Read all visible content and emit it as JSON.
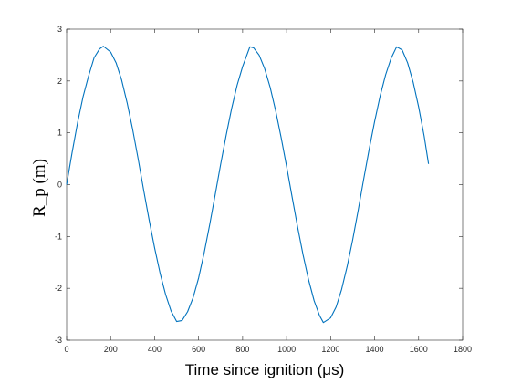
{
  "chart_data": {
    "type": "line",
    "title": "",
    "xlabel": "Time since ignition (μs)",
    "ylabel": "R_p (m)",
    "xlim": [
      0,
      1800
    ],
    "ylim": [
      -3,
      3
    ],
    "xticks": [
      "0",
      "200",
      "400",
      "600",
      "800",
      "1000",
      "1200",
      "1400",
      "1600",
      "1800"
    ],
    "yticks": [
      "-3",
      "-2",
      "-1",
      "0",
      "1",
      "2",
      "3"
    ],
    "grid": false,
    "legend": "none",
    "series": [
      {
        "color": "#0072bd",
        "x": [
          0,
          25,
          50,
          75,
          100,
          125,
          150,
          167,
          200,
          225,
          250,
          275,
          300,
          325,
          350,
          375,
          400,
          425,
          450,
          475,
          500,
          525,
          550,
          575,
          600,
          625,
          650,
          675,
          700,
          725,
          750,
          775,
          800,
          833,
          850,
          875,
          900,
          925,
          950,
          975,
          1000,
          1025,
          1050,
          1075,
          1100,
          1125,
          1150,
          1167,
          1200,
          1225,
          1250,
          1275,
          1300,
          1325,
          1350,
          1375,
          1400,
          1425,
          1450,
          1475,
          1500,
          1525,
          1550,
          1575,
          1600,
          1625,
          1645
        ],
        "y": [
          0,
          0.62,
          1.2,
          1.7,
          2.1,
          2.45,
          2.62,
          2.67,
          2.56,
          2.35,
          2.02,
          1.58,
          1.07,
          0.5,
          -0.1,
          -0.68,
          -1.22,
          -1.71,
          -2.12,
          -2.44,
          -2.64,
          -2.62,
          -2.45,
          -2.18,
          -1.8,
          -1.32,
          -0.78,
          -0.2,
          0.39,
          0.95,
          1.47,
          1.92,
          2.28,
          2.66,
          2.64,
          2.5,
          2.24,
          1.88,
          1.43,
          0.91,
          0.35,
          -0.24,
          -0.82,
          -1.36,
          -1.84,
          -2.24,
          -2.53,
          -2.66,
          -2.57,
          -2.36,
          -2.02,
          -1.58,
          -1.07,
          -0.5,
          0.1,
          0.68,
          1.22,
          1.71,
          2.12,
          2.44,
          2.66,
          2.6,
          2.35,
          1.98,
          1.5,
          0.94,
          0.4
        ]
      }
    ]
  }
}
